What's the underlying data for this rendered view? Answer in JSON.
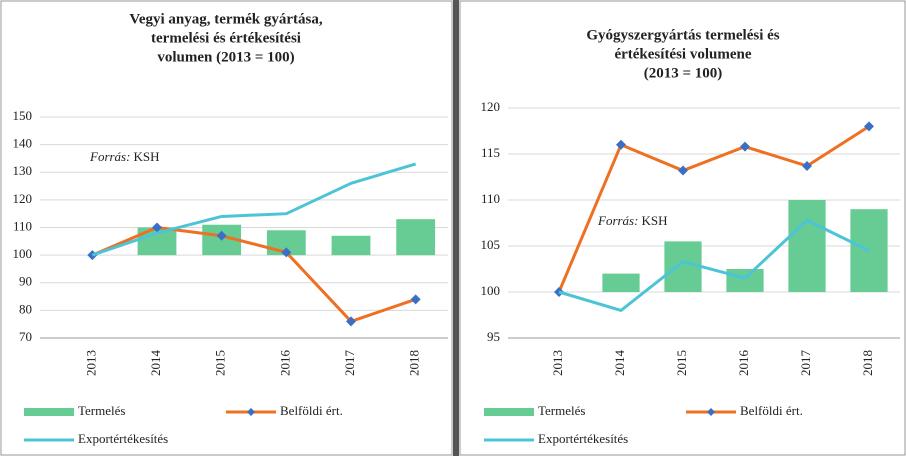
{
  "chart_data": [
    {
      "type": "combo",
      "title": [
        "Vegyi anyag, termék gyártása,",
        "termelési és értékesítési",
        "volumen (2013 = 100)"
      ],
      "source_label": "Forrás:",
      "source": "KSH",
      "categories": [
        "2013",
        "2014",
        "2015",
        "2016",
        "2017",
        "2018"
      ],
      "series": [
        {
          "name": "Termelés",
          "kind": "bar",
          "color": "#66cc94",
          "values": [
            100,
            110,
            111,
            109,
            107,
            113
          ]
        },
        {
          "name": "Belföldi ért.",
          "kind": "line",
          "marker": "diamond",
          "marker_color": "#3b6fc6",
          "color": "#ee7022",
          "values": [
            100,
            110,
            107,
            101,
            76,
            84
          ]
        },
        {
          "name": "Exportértékesítés",
          "kind": "line",
          "color": "#4cc4d6",
          "values": [
            100,
            108,
            114,
            115,
            126,
            133
          ]
        }
      ],
      "ylim": [
        70,
        150
      ],
      "yticks": [
        70,
        80,
        90,
        100,
        110,
        120,
        130,
        140,
        150
      ],
      "grid": true
    },
    {
      "type": "combo",
      "title": [
        "Gyógyszergyártás termelési és",
        "értékesítési volumene",
        "(2013 = 100)"
      ],
      "source_label": "Forrás:",
      "source": "KSH",
      "categories": [
        "2013",
        "2014",
        "2015",
        "2016",
        "2017",
        "2018"
      ],
      "series": [
        {
          "name": "Termelés",
          "kind": "bar",
          "color": "#66cc94",
          "values": [
            100,
            102,
            105.5,
            102.5,
            110,
            109
          ]
        },
        {
          "name": "Belföldi ért.",
          "kind": "line",
          "marker": "diamond",
          "marker_color": "#3b6fc6",
          "color": "#ee7022",
          "values": [
            100,
            116,
            113.2,
            115.8,
            113.7,
            118
          ]
        },
        {
          "name": "Exportértékesítés",
          "kind": "line",
          "color": "#4cc4d6",
          "values": [
            100,
            98,
            103.3,
            101.5,
            107.8,
            104.5
          ]
        }
      ],
      "ylim": [
        95,
        120
      ],
      "yticks": [
        95,
        100,
        105,
        110,
        115,
        120
      ],
      "grid": true
    }
  ]
}
